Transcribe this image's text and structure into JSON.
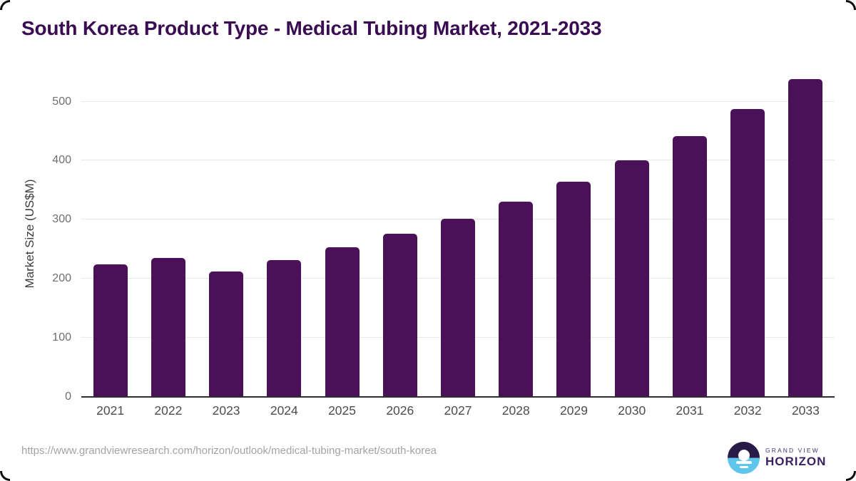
{
  "header": {
    "title": "South Korea Product Type - Medical Tubing Market, 2021-2033",
    "title_color": "#3a0d53"
  },
  "chart_data": {
    "type": "bar",
    "title": "South Korea Product Type - Medical Tubing Market, 2021-2033",
    "categories": [
      "2021",
      "2022",
      "2023",
      "2024",
      "2025",
      "2026",
      "2027",
      "2028",
      "2029",
      "2030",
      "2031",
      "2032",
      "2033"
    ],
    "values": [
      225,
      235,
      212,
      232,
      253,
      276,
      302,
      331,
      364,
      401,
      442,
      488,
      538
    ],
    "xlabel": "",
    "ylabel": "Market Size (US$M)",
    "yticks": [
      0,
      100,
      200,
      300,
      400,
      500
    ],
    "ylim": [
      0,
      555
    ],
    "grid": true,
    "legend": false,
    "bar_color": "#4a1159",
    "units": "US$M"
  },
  "footer": {
    "source_url": "https://www.grandviewresearch.com/horizon/outlook/medical-tubing-market/south-korea",
    "logo": {
      "line1": "GRAND VIEW",
      "line2": "HORIZON"
    }
  }
}
